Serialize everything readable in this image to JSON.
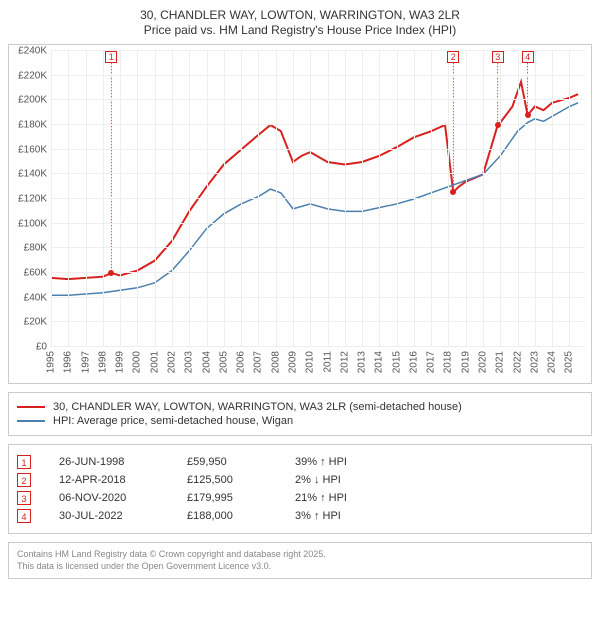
{
  "title": {
    "line1": "30, CHANDLER WAY, LOWTON, WARRINGTON, WA3 2LR",
    "line2": "Price paid vs. HM Land Registry's House Price Index (HPI)"
  },
  "chart": {
    "type": "line",
    "background_color": "#ffffff",
    "grid_color": "#eeeeee",
    "x": {
      "min": 1995,
      "max": 2025.9,
      "ticks": [
        1995,
        1996,
        1997,
        1998,
        1999,
        2000,
        2001,
        2002,
        2003,
        2004,
        2005,
        2006,
        2007,
        2008,
        2009,
        2010,
        2011,
        2012,
        2013,
        2014,
        2015,
        2016,
        2017,
        2018,
        2019,
        2020,
        2021,
        2022,
        2023,
        2024,
        2025
      ]
    },
    "y": {
      "min": 0,
      "max": 240000,
      "ticks": [
        0,
        20000,
        40000,
        60000,
        80000,
        100000,
        120000,
        140000,
        160000,
        180000,
        200000,
        220000,
        240000
      ],
      "prefix": "£",
      "tick_format_k": true
    },
    "series": [
      {
        "name": "30, CHANDLER WAY, LOWTON, WARRINGTON, WA3 2LR (semi-detached house)",
        "color": "#d8201f",
        "width": 2,
        "data": [
          [
            1995.0,
            56000
          ],
          [
            1996.0,
            55000
          ],
          [
            1997.0,
            56000
          ],
          [
            1998.0,
            57000
          ],
          [
            1998.5,
            59950
          ],
          [
            1999.0,
            58000
          ],
          [
            2000.0,
            62000
          ],
          [
            2001.0,
            70000
          ],
          [
            2002.0,
            86000
          ],
          [
            2003.0,
            110000
          ],
          [
            2004.0,
            130000
          ],
          [
            2005.0,
            148000
          ],
          [
            2006.0,
            160000
          ],
          [
            2007.0,
            172000
          ],
          [
            2007.7,
            180000
          ],
          [
            2008.3,
            175000
          ],
          [
            2009.0,
            150000
          ],
          [
            2009.5,
            155000
          ],
          [
            2010.0,
            158000
          ],
          [
            2011.0,
            150000
          ],
          [
            2012.0,
            148000
          ],
          [
            2013.0,
            150000
          ],
          [
            2014.0,
            155000
          ],
          [
            2015.0,
            162000
          ],
          [
            2016.0,
            170000
          ],
          [
            2017.0,
            175000
          ],
          [
            2017.8,
            180000
          ],
          [
            2018.28,
            125500
          ],
          [
            2018.6,
            130000
          ],
          [
            2019.0,
            134000
          ],
          [
            2020.0,
            140000
          ],
          [
            2020.85,
            179995
          ],
          [
            2021.0,
            182000
          ],
          [
            2021.7,
            195000
          ],
          [
            2022.2,
            215000
          ],
          [
            2022.58,
            188000
          ],
          [
            2023.0,
            195000
          ],
          [
            2023.5,
            192000
          ],
          [
            2024.0,
            198000
          ],
          [
            2024.5,
            200000
          ],
          [
            2025.0,
            202000
          ],
          [
            2025.5,
            205000
          ]
        ]
      },
      {
        "name": "HPI: Average price, semi-detached house, Wigan",
        "color": "#4a7fb0",
        "width": 1.5,
        "data": [
          [
            1995.0,
            42000
          ],
          [
            1996.0,
            42000
          ],
          [
            1997.0,
            43000
          ],
          [
            1998.0,
            44000
          ],
          [
            1999.0,
            46000
          ],
          [
            2000.0,
            48000
          ],
          [
            2001.0,
            52000
          ],
          [
            2002.0,
            62000
          ],
          [
            2003.0,
            78000
          ],
          [
            2004.0,
            96000
          ],
          [
            2005.0,
            108000
          ],
          [
            2006.0,
            116000
          ],
          [
            2007.0,
            122000
          ],
          [
            2007.7,
            128000
          ],
          [
            2008.3,
            125000
          ],
          [
            2009.0,
            112000
          ],
          [
            2010.0,
            116000
          ],
          [
            2011.0,
            112000
          ],
          [
            2012.0,
            110000
          ],
          [
            2013.0,
            110000
          ],
          [
            2014.0,
            113000
          ],
          [
            2015.0,
            116000
          ],
          [
            2016.0,
            120000
          ],
          [
            2017.0,
            125000
          ],
          [
            2018.0,
            130000
          ],
          [
            2019.0,
            135000
          ],
          [
            2020.0,
            140000
          ],
          [
            2021.0,
            155000
          ],
          [
            2022.0,
            175000
          ],
          [
            2022.58,
            182000
          ],
          [
            2023.0,
            185000
          ],
          [
            2023.5,
            183000
          ],
          [
            2024.0,
            187000
          ],
          [
            2025.0,
            195000
          ],
          [
            2025.5,
            198000
          ]
        ]
      }
    ],
    "sale_markers": [
      {
        "n": 1,
        "x": 1998.49,
        "price": 59950
      },
      {
        "n": 2,
        "x": 2018.28,
        "price": 125500
      },
      {
        "n": 3,
        "x": 2020.85,
        "price": 179995
      },
      {
        "n": 4,
        "x": 2022.58,
        "price": 188000
      }
    ],
    "marker_color": "#d8201f"
  },
  "legend": [
    {
      "color": "#d8201f",
      "label": "30, CHANDLER WAY, LOWTON, WARRINGTON, WA3 2LR (semi-detached house)"
    },
    {
      "color": "#4a7fb0",
      "label": "HPI: Average price, semi-detached house, Wigan"
    }
  ],
  "sales": [
    {
      "n": "1",
      "date": "26-JUN-1998",
      "price": "£59,950",
      "delta": "39% ↑ HPI"
    },
    {
      "n": "2",
      "date": "12-APR-2018",
      "price": "£125,500",
      "delta": "2% ↓ HPI"
    },
    {
      "n": "3",
      "date": "06-NOV-2020",
      "price": "£179,995",
      "delta": "21% ↑ HPI"
    },
    {
      "n": "4",
      "date": "30-JUL-2022",
      "price": "£188,000",
      "delta": "3% ↑ HPI"
    }
  ],
  "sales_marker_color": "#d8201f",
  "footer": {
    "line1": "Contains HM Land Registry data © Crown copyright and database right 2025.",
    "line2": "This data is licensed under the Open Government Licence v3.0."
  }
}
